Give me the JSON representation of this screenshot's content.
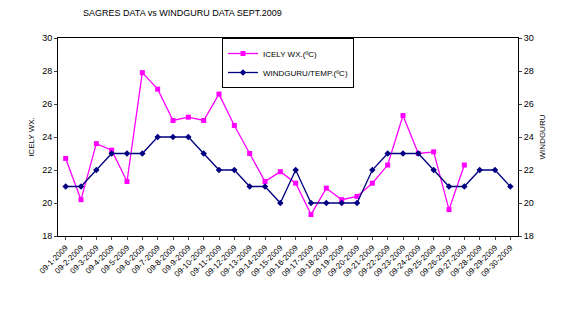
{
  "chart_data": {
    "type": "line",
    "title": "SAGRES DATA vs WINDGURU DATA SEPT.2009",
    "y_label": "ICELY WX.",
    "y2_label": "WINDGURU",
    "categories": [
      "09-1-2009",
      "09-2-2009",
      "09-3-2009",
      "09-4-2009",
      "09-5-2009",
      "09-6-2009",
      "09-7-2009",
      "09-8-2009",
      "09-9-2009",
      "09-10-2009",
      "09-11-2009",
      "09-12-2009",
      "09-13-2009",
      "09-14-2009",
      "09-15-2009",
      "09-16-2009",
      "09-17-2009",
      "09-18-2009",
      "09-19-2009",
      "09-20-2009",
      "09-21-2009",
      "09-22-2009",
      "09-23-2009",
      "09-24-2009",
      "09-25-2009",
      "09-26-2009",
      "09-27-2009",
      "09-28-2009",
      "09-29-2009",
      "09-30-2009"
    ],
    "series": [
      {
        "name": "ICELY WX.(ºC)",
        "color": "#ff00ff",
        "marker": "square",
        "line_style": "solid",
        "values": [
          22.7,
          20.2,
          23.6,
          23.2,
          21.3,
          27.9,
          26.9,
          25.0,
          25.2,
          25.0,
          26.6,
          24.7,
          23.0,
          21.3,
          21.9,
          21.2,
          19.3,
          20.9,
          20.2,
          20.4,
          21.2,
          22.3,
          25.3,
          23.0,
          23.1,
          19.6,
          22.3,
          null,
          null,
          null
        ]
      },
      {
        "name": "WINDGURU/TEMP.(ºC)",
        "color": "#000080",
        "marker": "diamond",
        "line_style": "solid",
        "axis": "y2",
        "values": [
          21,
          21,
          22,
          23,
          23,
          23,
          24,
          24,
          24,
          23,
          22,
          22,
          21,
          21,
          20,
          22,
          20,
          20,
          20,
          20,
          22,
          23,
          23,
          23,
          22,
          21,
          21,
          22,
          22,
          21
        ]
      }
    ],
    "ylim": [
      18,
      30
    ],
    "yticks": [
      18,
      20,
      22,
      24,
      26,
      28,
      30
    ],
    "y2lim": [
      18,
      30
    ],
    "y2ticks": [
      18,
      20,
      22,
      24,
      26,
      28,
      30
    ],
    "grid": false,
    "legend": "top"
  }
}
